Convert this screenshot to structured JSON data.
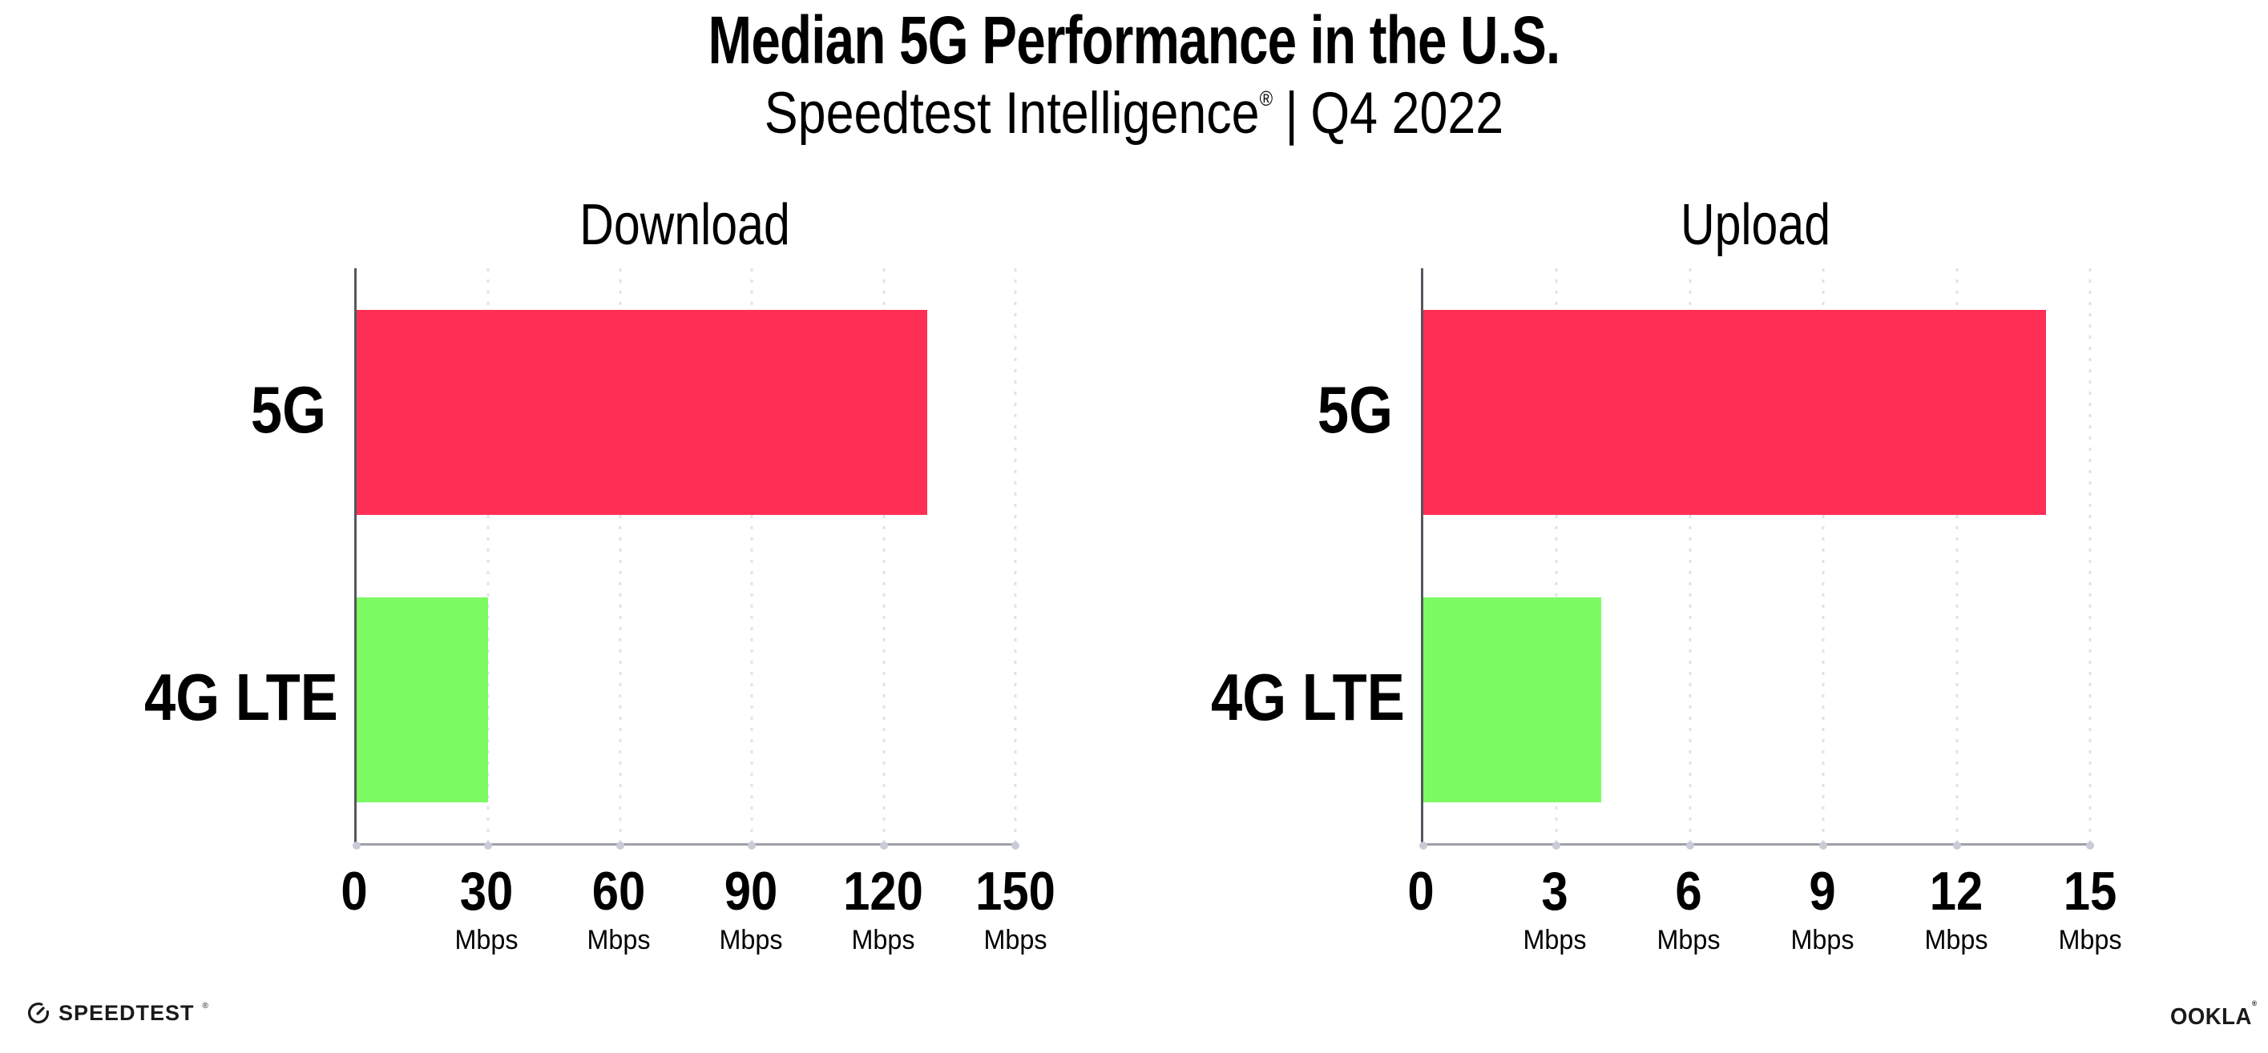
{
  "header": {
    "title": "Median 5G Performance in the U.S.",
    "subtitle": {
      "brand": "Speedtest Intelligence",
      "registered": "®",
      "separator": "|",
      "period": "Q4 2022"
    }
  },
  "chart_data": [
    {
      "type": "bar",
      "orientation": "horizontal",
      "title": "Download",
      "categories": [
        "5G",
        "4G LTE"
      ],
      "values": [
        130,
        30
      ],
      "value_unit": "Mbps",
      "xlim": [
        0,
        150
      ],
      "ticks": [
        0,
        30,
        60,
        90,
        120,
        150
      ],
      "tick_unit": "Mbps",
      "tick_unit_on_zero": false,
      "bar_colors": [
        "#FF2E55",
        "#7CFB63"
      ],
      "grid": {
        "style": "dotted",
        "orientation": "vertical"
      },
      "legend": "none"
    },
    {
      "type": "bar",
      "orientation": "horizontal",
      "title": "Upload",
      "categories": [
        "5G",
        "4G LTE"
      ],
      "values": [
        14,
        4
      ],
      "value_unit": "Mbps",
      "xlim": [
        0,
        15
      ],
      "ticks": [
        0,
        3,
        6,
        9,
        12,
        15
      ],
      "tick_unit": "Mbps",
      "tick_unit_on_zero": false,
      "bar_colors": [
        "#FF2E55",
        "#7CFB63"
      ],
      "grid": {
        "style": "dotted",
        "orientation": "vertical"
      },
      "legend": "none"
    }
  ],
  "footer": {
    "speedtest": {
      "label": "SPEEDTEST",
      "registered": "®",
      "icon": "speedtest-gauge-icon"
    },
    "ookla": {
      "label": "OOKLA",
      "registered": "®"
    }
  },
  "colors": {
    "bar_5g": "#FF2E55",
    "bar_4g_lte": "#7CFB63",
    "gridline": "#E0E2EC",
    "y_axis": "#55565E",
    "x_axis": "#9EA0A8",
    "axis_tick_dot": "#C9CBD6",
    "text": "#000000",
    "logo": "#1A1A1A",
    "background": "#FFFFFF"
  }
}
